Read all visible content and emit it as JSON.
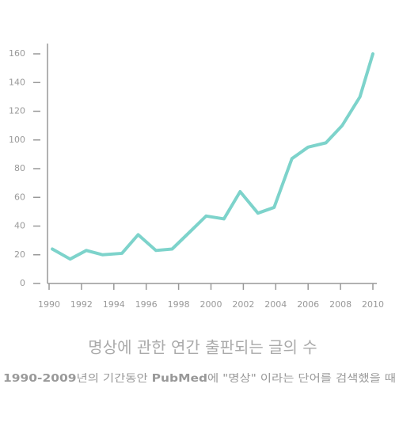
{
  "chart_data": {
    "type": "line",
    "title": "명상에 관한 연간 출판되는 글의 수",
    "subtitle": [
      "1990-2009",
      "년의 기간동안 ",
      "PubMed",
      "에 \"명상\" 이라는 단어를 검색했을 때"
    ],
    "x": [
      1990.2,
      1991.3,
      1992.3,
      1993.3,
      1994.5,
      1995.5,
      1996.6,
      1997.6,
      1998.7,
      1999.7,
      2000.8,
      2001.8,
      2002.9,
      2003.9,
      2005.0,
      2006.0,
      2007.1,
      2008.1,
      2009.2,
      2010.0
    ],
    "series": [
      {
        "color": "#7dd3cb",
        "values": [
          24,
          17,
          23,
          20,
          21,
          34,
          23,
          24,
          36,
          47,
          45,
          64,
          49,
          53,
          87,
          95,
          98,
          110,
          130,
          160
        ]
      }
    ],
    "xlim": [
      1990,
      2010
    ],
    "xticks": [
      1990,
      1992,
      1994,
      1996,
      1998,
      2000,
      2002,
      2004,
      2006,
      2008,
      2010
    ],
    "ylim": [
      0,
      160
    ],
    "yticks": [
      0,
      20,
      40,
      60,
      80,
      100,
      120,
      140,
      160
    ]
  }
}
